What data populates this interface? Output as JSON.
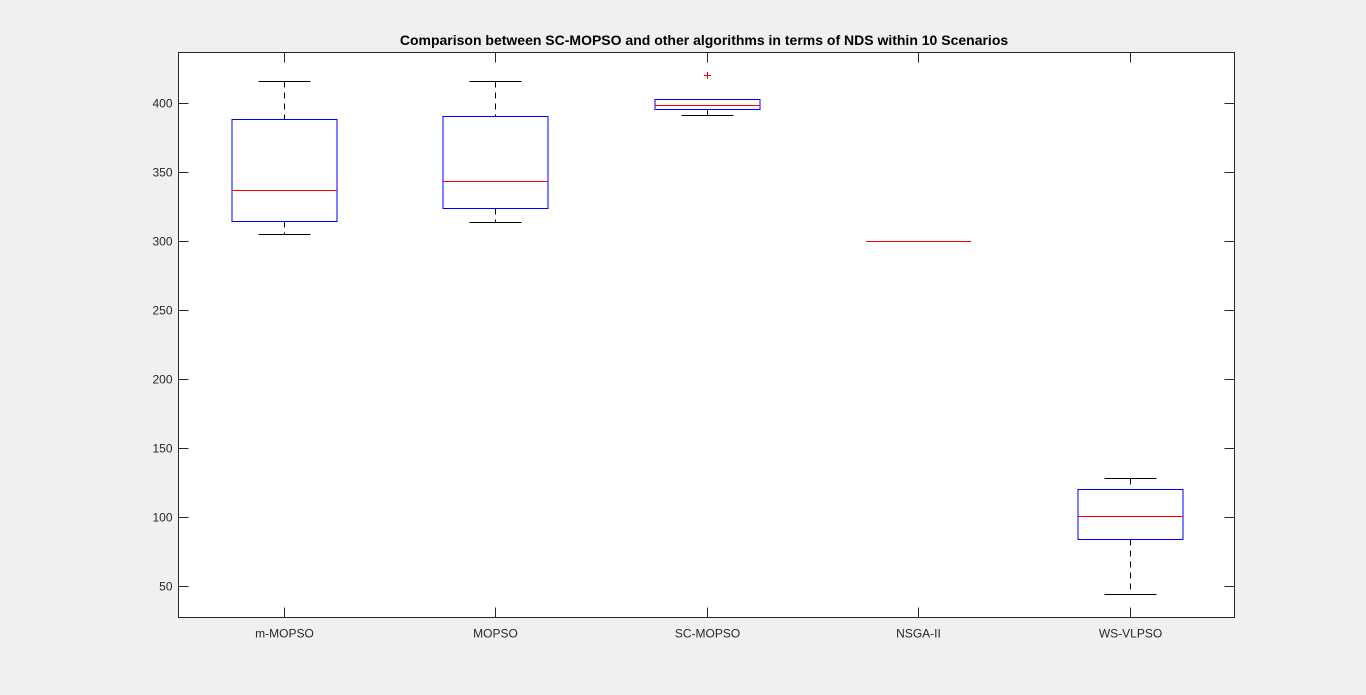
{
  "chart_data": {
    "type": "box",
    "title": "Comparison between SC-MOPSO and other algorithms in terms of NDS within 10 Scenarios",
    "xlabel": "",
    "ylabel": "",
    "ylim": [
      27,
      437
    ],
    "yticks": [
      50,
      100,
      150,
      200,
      250,
      300,
      350,
      400
    ],
    "categories": [
      "m-MOPSO",
      "MOPSO",
      "SC-MOPSO",
      "NSGA-II",
      "WS-VLPSO"
    ],
    "boxes": [
      {
        "category": "m-MOPSO",
        "whisker_low": 305,
        "q1": 315,
        "median": 337,
        "q3": 389,
        "whisker_high": 416,
        "outliers": []
      },
      {
        "category": "MOPSO",
        "whisker_low": 314,
        "q1": 324,
        "median": 344,
        "q3": 391,
        "whisker_high": 416,
        "outliers": []
      },
      {
        "category": "SC-MOPSO",
        "whisker_low": 392,
        "q1": 396,
        "median": 399,
        "q3": 403,
        "whisker_high": 403,
        "outliers": [
          421
        ]
      },
      {
        "category": "NSGA-II",
        "whisker_low": 300,
        "q1": 300,
        "median": 300,
        "q3": 300,
        "whisker_high": 300,
        "outliers": []
      },
      {
        "category": "WS-VLPSO",
        "whisker_low": 44,
        "q1": 84,
        "median": 101,
        "q3": 120,
        "whisker_high": 128,
        "outliers": []
      }
    ],
    "grid": false,
    "colors": {
      "box": "#0000ff",
      "median": "#ff0000",
      "whisker": "#000000",
      "outlier": "#ff0000",
      "axes": "#262626",
      "plot_background": "#ffffff",
      "figure_background": "#f0f0f0"
    }
  }
}
